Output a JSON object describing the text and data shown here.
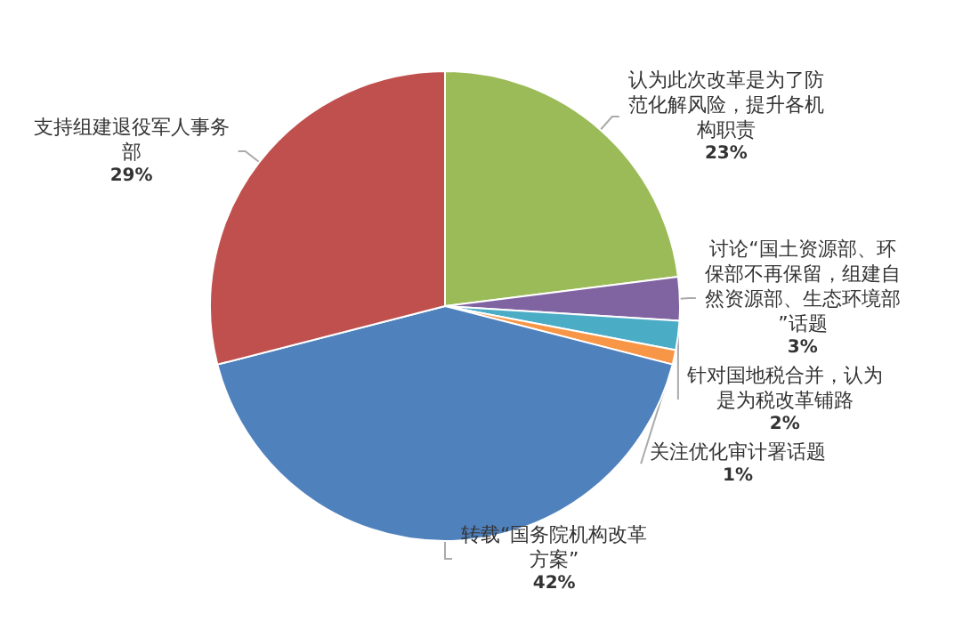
{
  "chart_data": {
    "type": "pie",
    "categories": [
      "认为此次改革是为了防范化解风险，提升各机构职责",
      "讨论“国土资源部、环保部不再保留，组建自然资源部、生态环境部”话题",
      "针对国地税合并，认为是为税改革铺路",
      "关注优化审计署话题",
      "转载“国务院机构改革方案”",
      "支持组建退役军人事务部"
    ],
    "values": [
      23,
      3,
      2,
      1,
      42,
      29
    ],
    "value_labels": [
      "23%",
      "3%",
      "2%",
      "1%",
      "42%",
      "29%"
    ],
    "colors": [
      "#9bbb59",
      "#8064a2",
      "#4bacc6",
      "#f79646",
      "#4f81bd",
      "#c0504d"
    ],
    "legend": false
  }
}
